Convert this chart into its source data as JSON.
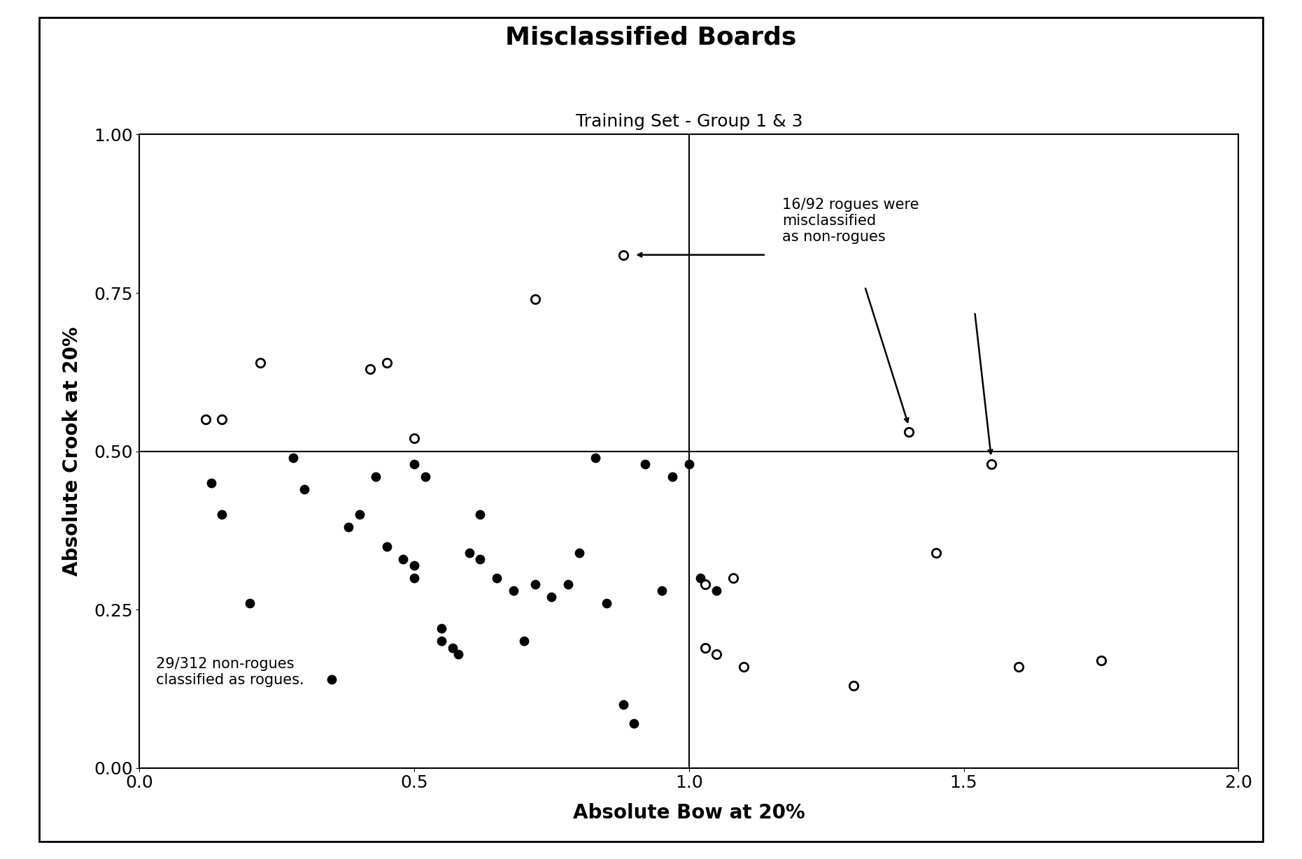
{
  "title": "Misclassified Boards",
  "subtitle": "Training Set - Group 1 & 3",
  "xlabel": "Absolute Bow at 20%",
  "ylabel": "Absolute Crook at 20%",
  "xlim": [
    0.0,
    2.0
  ],
  "ylim": [
    0.0,
    1.0
  ],
  "xticks": [
    0.0,
    0.5,
    1.0,
    1.5,
    2.0
  ],
  "yticks": [
    0.0,
    0.25,
    0.5,
    0.75,
    1.0
  ],
  "ytick_labels": [
    "0.00",
    "0.25",
    "0.50",
    "0.75",
    "1.00"
  ],
  "xtick_labels": [
    "0.0",
    "0.5",
    "1.0",
    "1.5",
    "2.0"
  ],
  "hline_y": 0.5,
  "vline_x": 1.0,
  "filled_points": [
    [
      0.13,
      0.45
    ],
    [
      0.15,
      0.4
    ],
    [
      0.2,
      0.26
    ],
    [
      0.28,
      0.49
    ],
    [
      0.3,
      0.44
    ],
    [
      0.35,
      0.14
    ],
    [
      0.38,
      0.38
    ],
    [
      0.4,
      0.4
    ],
    [
      0.43,
      0.46
    ],
    [
      0.45,
      0.35
    ],
    [
      0.48,
      0.33
    ],
    [
      0.5,
      0.3
    ],
    [
      0.5,
      0.32
    ],
    [
      0.5,
      0.48
    ],
    [
      0.52,
      0.46
    ],
    [
      0.55,
      0.2
    ],
    [
      0.55,
      0.22
    ],
    [
      0.57,
      0.19
    ],
    [
      0.58,
      0.18
    ],
    [
      0.6,
      0.34
    ],
    [
      0.62,
      0.33
    ],
    [
      0.62,
      0.4
    ],
    [
      0.65,
      0.3
    ],
    [
      0.68,
      0.28
    ],
    [
      0.7,
      0.2
    ],
    [
      0.72,
      0.29
    ],
    [
      0.75,
      0.27
    ],
    [
      0.78,
      0.29
    ],
    [
      0.8,
      0.34
    ],
    [
      0.83,
      0.49
    ],
    [
      0.85,
      0.26
    ],
    [
      0.88,
      0.1
    ],
    [
      0.9,
      0.07
    ],
    [
      0.92,
      0.48
    ],
    [
      0.95,
      0.28
    ],
    [
      0.97,
      0.46
    ],
    [
      1.0,
      0.48
    ],
    [
      1.02,
      0.3
    ],
    [
      1.05,
      0.28
    ]
  ],
  "open_points": [
    [
      0.12,
      0.55
    ],
    [
      0.15,
      0.55
    ],
    [
      0.22,
      0.64
    ],
    [
      0.42,
      0.63
    ],
    [
      0.45,
      0.64
    ],
    [
      0.5,
      0.52
    ],
    [
      0.72,
      0.74
    ],
    [
      0.88,
      0.81
    ],
    [
      1.03,
      0.29
    ],
    [
      1.03,
      0.19
    ],
    [
      1.05,
      0.18
    ],
    [
      1.08,
      0.3
    ],
    [
      1.1,
      0.16
    ],
    [
      1.3,
      0.13
    ],
    [
      1.4,
      0.53
    ],
    [
      1.45,
      0.34
    ],
    [
      1.55,
      0.48
    ],
    [
      1.6,
      0.16
    ],
    [
      1.75,
      0.17
    ]
  ],
  "background_color": "#ffffff",
  "marker_size": 80,
  "linewidth": 1.5,
  "title_fontsize": 26,
  "subtitle_fontsize": 18,
  "axis_label_fontsize": 20,
  "tick_fontsize": 18,
  "annotation_fontsize": 15
}
